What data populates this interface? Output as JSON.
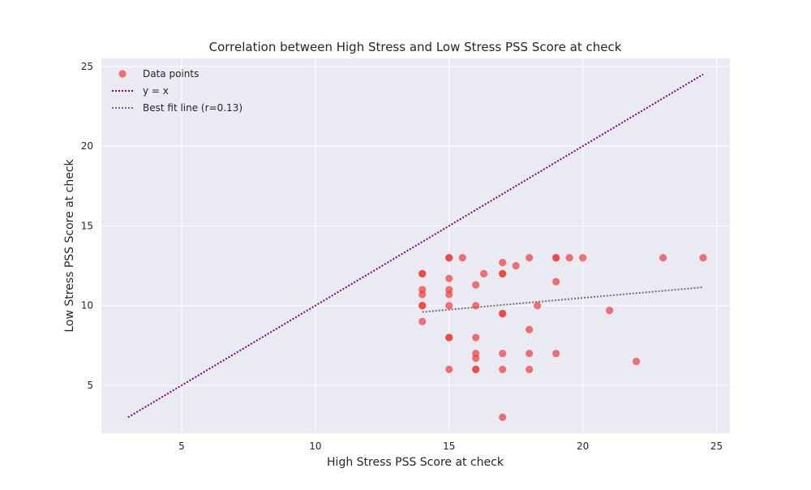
{
  "chart_data": {
    "type": "scatter",
    "title": "Correlation between High Stress and Low Stress PSS Score at  check",
    "xlabel": "High Stress PSS Score at  check",
    "ylabel": "Low Stress PSS Score at  check",
    "xlim": [
      2.0,
      25.5
    ],
    "ylim": [
      2.0,
      25.5
    ],
    "xticks": [
      5,
      10,
      15,
      20,
      25
    ],
    "yticks": [
      5,
      10,
      15,
      20,
      25
    ],
    "grid": true,
    "legend_position": "top-left",
    "colors": {
      "background": "#eaeaf2",
      "grid": "#ffffff",
      "points": "#ee3b3b",
      "identity_line": "#800080",
      "fit_line": "#707070"
    },
    "series": [
      {
        "name": "Data points",
        "kind": "scatter",
        "points": [
          [
            14,
            12
          ],
          [
            14,
            12
          ],
          [
            14,
            11
          ],
          [
            14,
            10.7
          ],
          [
            14,
            10
          ],
          [
            14,
            10
          ],
          [
            14,
            9
          ],
          [
            15,
            13
          ],
          [
            15,
            13
          ],
          [
            15,
            11.7
          ],
          [
            15,
            11
          ],
          [
            15,
            10.7
          ],
          [
            15,
            10
          ],
          [
            15,
            8
          ],
          [
            15,
            8
          ],
          [
            15,
            6
          ],
          [
            15.5,
            13
          ],
          [
            16,
            11.3
          ],
          [
            16,
            10
          ],
          [
            16,
            8
          ],
          [
            16,
            7
          ],
          [
            16,
            6.7
          ],
          [
            16,
            6
          ],
          [
            16,
            6
          ],
          [
            16.3,
            12
          ],
          [
            17,
            12.7
          ],
          [
            17,
            12
          ],
          [
            17,
            12
          ],
          [
            17,
            9.5
          ],
          [
            17,
            9.5
          ],
          [
            17,
            7
          ],
          [
            17,
            6
          ],
          [
            17,
            3
          ],
          [
            17.5,
            12.5
          ],
          [
            18,
            13
          ],
          [
            18,
            8.5
          ],
          [
            18,
            7
          ],
          [
            18,
            6
          ],
          [
            18.3,
            10
          ],
          [
            19,
            13
          ],
          [
            19,
            13
          ],
          [
            19,
            11.5
          ],
          [
            19,
            7
          ],
          [
            19.5,
            13
          ],
          [
            20,
            13
          ],
          [
            21,
            9.7
          ],
          [
            22,
            6.5
          ],
          [
            23,
            13
          ],
          [
            24.5,
            13
          ]
        ]
      },
      {
        "name": "y = x",
        "kind": "line",
        "x": [
          3,
          24.5
        ],
        "y": [
          3,
          24.5
        ]
      },
      {
        "name": "Best fit line (r=0.13)",
        "kind": "line",
        "x": [
          14,
          24.5
        ],
        "y": [
          9.6,
          11.15
        ]
      }
    ]
  }
}
